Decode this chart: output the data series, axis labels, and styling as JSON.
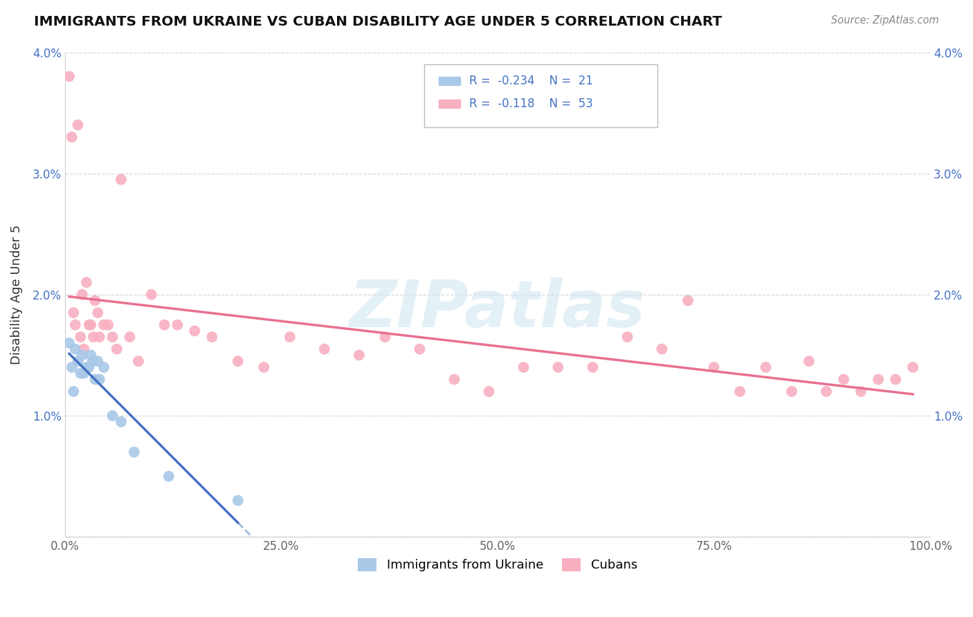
{
  "title": "IMMIGRANTS FROM UKRAINE VS CUBAN DISABILITY AGE UNDER 5 CORRELATION CHART",
  "source": "Source: ZipAtlas.com",
  "ylabel": "Disability Age Under 5",
  "xlim": [
    0,
    1.0
  ],
  "ylim": [
    0,
    0.04
  ],
  "legend_x_label": "Immigrants from Ukraine",
  "legend_cubans_label": "Cubans",
  "ukraine_R": "-0.234",
  "ukraine_N": "21",
  "cuba_R": "-0.118",
  "cuba_N": "53",
  "ukraine_color": "#a8c8e8",
  "cuba_color": "#f8b0c0",
  "ukraine_line_color": "#4472c4",
  "cuba_line_color": "#e87090",
  "ukraine_scatter_x": [
    0.005,
    0.008,
    0.01,
    0.012,
    0.015,
    0.018,
    0.02,
    0.022,
    0.025,
    0.028,
    0.03,
    0.032,
    0.035,
    0.038,
    0.04,
    0.045,
    0.055,
    0.065,
    0.08,
    0.12,
    0.2
  ],
  "ukraine_scatter_y": [
    0.016,
    0.014,
    0.012,
    0.0155,
    0.0145,
    0.0135,
    0.015,
    0.0135,
    0.014,
    0.014,
    0.015,
    0.0145,
    0.013,
    0.0145,
    0.013,
    0.014,
    0.01,
    0.0095,
    0.007,
    0.005,
    0.003
  ],
  "cuba_scatter_x": [
    0.005,
    0.008,
    0.01,
    0.012,
    0.015,
    0.018,
    0.02,
    0.022,
    0.025,
    0.028,
    0.03,
    0.033,
    0.035,
    0.038,
    0.04,
    0.045,
    0.05,
    0.055,
    0.06,
    0.065,
    0.075,
    0.085,
    0.1,
    0.115,
    0.13,
    0.15,
    0.17,
    0.2,
    0.23,
    0.26,
    0.3,
    0.34,
    0.37,
    0.41,
    0.45,
    0.49,
    0.53,
    0.57,
    0.61,
    0.65,
    0.69,
    0.72,
    0.75,
    0.78,
    0.81,
    0.84,
    0.86,
    0.88,
    0.9,
    0.92,
    0.94,
    0.96,
    0.98
  ],
  "cuba_scatter_y": [
    0.038,
    0.033,
    0.0185,
    0.0175,
    0.034,
    0.0165,
    0.02,
    0.0155,
    0.021,
    0.0175,
    0.0175,
    0.0165,
    0.0195,
    0.0185,
    0.0165,
    0.0175,
    0.0175,
    0.0165,
    0.0155,
    0.0295,
    0.0165,
    0.0145,
    0.02,
    0.0175,
    0.0175,
    0.017,
    0.0165,
    0.0145,
    0.014,
    0.0165,
    0.0155,
    0.015,
    0.0165,
    0.0155,
    0.013,
    0.012,
    0.014,
    0.014,
    0.014,
    0.0165,
    0.0155,
    0.0195,
    0.014,
    0.012,
    0.014,
    0.012,
    0.0145,
    0.012,
    0.013,
    0.012,
    0.013,
    0.013,
    0.014
  ],
  "watermark_text": "ZIPatlas",
  "background_color": "#ffffff",
  "grid_color": "#d8d8d8"
}
